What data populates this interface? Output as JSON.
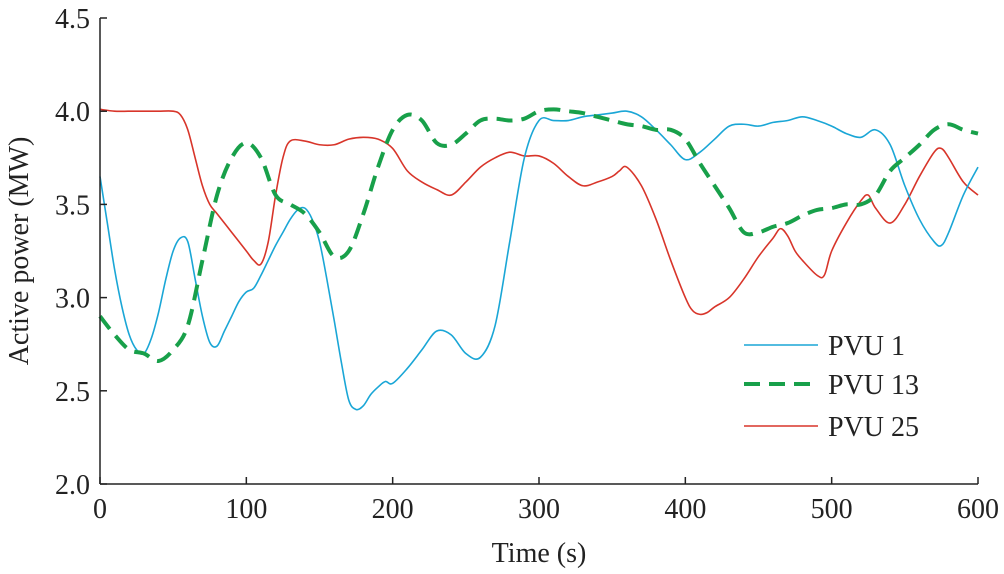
{
  "chart_data": {
    "type": "line",
    "title": "",
    "xlabel": "Time (s)",
    "ylabel": "Active power (MW)",
    "xlim": [
      0,
      600
    ],
    "ylim": [
      2.0,
      4.5
    ],
    "xticks": [
      0,
      100,
      200,
      300,
      400,
      500,
      600
    ],
    "xtick_labels": [
      "0",
      "100",
      "200",
      "300",
      "400",
      "500",
      "600"
    ],
    "yticks": [
      2.0,
      2.5,
      3.0,
      3.5,
      4.0,
      4.5
    ],
    "ytick_labels": [
      "2.0",
      "2.5",
      "3.0",
      "3.5",
      "4.0",
      "4.5"
    ],
    "grid": false,
    "legend_position": "bottom-right",
    "series": [
      {
        "name": "PVU 1",
        "color": "#1aa6d6",
        "dash": "solid",
        "x": [
          0,
          5,
          10,
          15,
          20,
          25,
          30,
          35,
          40,
          45,
          50,
          55,
          60,
          65,
          70,
          75,
          80,
          85,
          90,
          95,
          100,
          105,
          110,
          115,
          120,
          125,
          130,
          135,
          140,
          145,
          150,
          155,
          160,
          165,
          170,
          175,
          180,
          185,
          190,
          195,
          200,
          210,
          220,
          230,
          240,
          250,
          260,
          270,
          280,
          290,
          300,
          310,
          320,
          330,
          340,
          350,
          360,
          370,
          380,
          390,
          400,
          410,
          420,
          430,
          440,
          450,
          460,
          470,
          480,
          490,
          500,
          510,
          520,
          530,
          540,
          550,
          560,
          570,
          575,
          580,
          590,
          600
        ],
        "values": [
          3.65,
          3.4,
          3.15,
          2.95,
          2.8,
          2.72,
          2.7,
          2.78,
          2.92,
          3.1,
          3.25,
          3.32,
          3.3,
          3.1,
          2.9,
          2.76,
          2.74,
          2.82,
          2.9,
          2.98,
          3.03,
          3.05,
          3.12,
          3.2,
          3.28,
          3.35,
          3.42,
          3.47,
          3.48,
          3.42,
          3.3,
          3.1,
          2.88,
          2.65,
          2.45,
          2.4,
          2.42,
          2.48,
          2.52,
          2.55,
          2.54,
          2.62,
          2.72,
          2.82,
          2.8,
          2.7,
          2.68,
          2.85,
          3.3,
          3.75,
          3.95,
          3.95,
          3.95,
          3.97,
          3.98,
          3.99,
          4.0,
          3.97,
          3.9,
          3.82,
          3.74,
          3.78,
          3.85,
          3.92,
          3.93,
          3.92,
          3.94,
          3.95,
          3.97,
          3.95,
          3.92,
          3.88,
          3.86,
          3.9,
          3.82,
          3.6,
          3.42,
          3.3,
          3.28,
          3.35,
          3.55,
          3.7
        ]
      },
      {
        "name": "PVU 13",
        "color": "#18a04a",
        "dash": "dashed",
        "x": [
          0,
          10,
          20,
          30,
          40,
          50,
          60,
          70,
          80,
          90,
          100,
          110,
          120,
          130,
          140,
          150,
          160,
          170,
          180,
          190,
          200,
          210,
          220,
          230,
          240,
          250,
          260,
          270,
          280,
          290,
          300,
          310,
          320,
          330,
          340,
          350,
          360,
          370,
          380,
          390,
          400,
          410,
          420,
          430,
          440,
          450,
          460,
          470,
          480,
          490,
          500,
          510,
          520,
          530,
          540,
          550,
          560,
          570,
          580,
          590,
          600
        ],
        "values": [
          2.9,
          2.8,
          2.72,
          2.7,
          2.66,
          2.72,
          2.85,
          3.2,
          3.55,
          3.75,
          3.83,
          3.75,
          3.55,
          3.5,
          3.45,
          3.35,
          3.22,
          3.25,
          3.45,
          3.7,
          3.9,
          3.98,
          3.95,
          3.83,
          3.82,
          3.88,
          3.95,
          3.96,
          3.95,
          3.96,
          4.0,
          4.01,
          4.0,
          3.99,
          3.97,
          3.95,
          3.93,
          3.92,
          3.9,
          3.9,
          3.85,
          3.72,
          3.6,
          3.48,
          3.35,
          3.35,
          3.38,
          3.4,
          3.44,
          3.47,
          3.48,
          3.5,
          3.5,
          3.55,
          3.68,
          3.75,
          3.82,
          3.9,
          3.93,
          3.9,
          3.88
        ]
      },
      {
        "name": "PVU 25",
        "color": "#d8352a",
        "dash": "solid",
        "x": [
          0,
          10,
          20,
          30,
          40,
          50,
          55,
          60,
          65,
          70,
          75,
          80,
          90,
          100,
          105,
          110,
          115,
          120,
          125,
          130,
          140,
          150,
          160,
          170,
          180,
          190,
          200,
          210,
          220,
          230,
          240,
          250,
          260,
          270,
          280,
          290,
          300,
          310,
          320,
          330,
          340,
          350,
          355,
          360,
          370,
          380,
          390,
          400,
          405,
          410,
          415,
          420,
          430,
          440,
          450,
          460,
          465,
          470,
          475,
          480,
          490,
          495,
          500,
          510,
          520,
          525,
          530,
          540,
          550,
          560,
          570,
          575,
          580,
          590,
          600
        ],
        "values": [
          4.01,
          4.0,
          4.0,
          4.0,
          4.0,
          4.0,
          3.98,
          3.9,
          3.75,
          3.6,
          3.5,
          3.45,
          3.35,
          3.25,
          3.2,
          3.18,
          3.3,
          3.55,
          3.75,
          3.84,
          3.84,
          3.82,
          3.82,
          3.85,
          3.86,
          3.85,
          3.8,
          3.68,
          3.62,
          3.58,
          3.55,
          3.62,
          3.7,
          3.75,
          3.78,
          3.76,
          3.76,
          3.72,
          3.65,
          3.6,
          3.62,
          3.65,
          3.68,
          3.7,
          3.6,
          3.42,
          3.2,
          3.0,
          2.93,
          2.91,
          2.92,
          2.95,
          3.0,
          3.1,
          3.22,
          3.32,
          3.37,
          3.33,
          3.25,
          3.2,
          3.12,
          3.12,
          3.25,
          3.4,
          3.52,
          3.55,
          3.48,
          3.4,
          3.5,
          3.65,
          3.78,
          3.8,
          3.75,
          3.62,
          3.55
        ]
      }
    ]
  }
}
